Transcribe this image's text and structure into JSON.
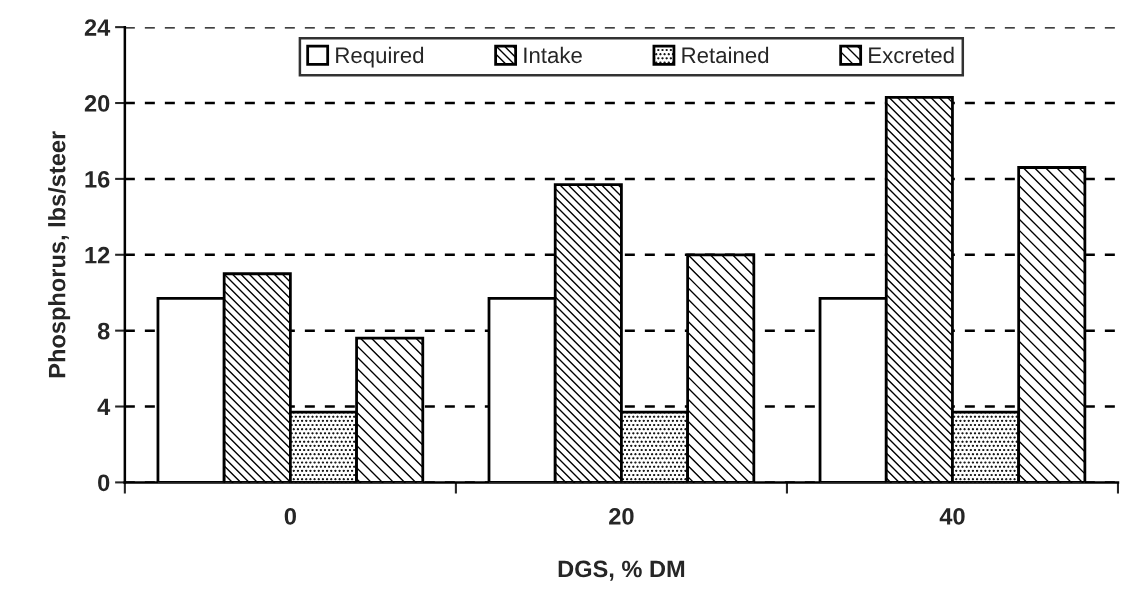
{
  "chart_data": {
    "type": "bar",
    "xlabel": "DGS, % DM",
    "ylabel": "Phosphorus, lbs/steer",
    "categories": [
      "0",
      "20",
      "40"
    ],
    "series": [
      {
        "name": "Required",
        "color": "#ffffff",
        "values": [
          9.7,
          9.7,
          9.7
        ]
      },
      {
        "name": "Intake",
        "color": "#000000",
        "values": [
          11.0,
          15.7,
          20.3
        ]
      },
      {
        "name": "Retained",
        "color": "#000000",
        "values": [
          3.7,
          3.7,
          3.7
        ]
      },
      {
        "name": "Excreted",
        "color": "#000000",
        "values": [
          7.6,
          12.0,
          16.6
        ]
      }
    ],
    "ylim": [
      0,
      24
    ],
    "yticks": [
      0,
      4,
      8,
      12,
      16,
      20,
      24
    ],
    "grid": "y",
    "legend": "top"
  }
}
